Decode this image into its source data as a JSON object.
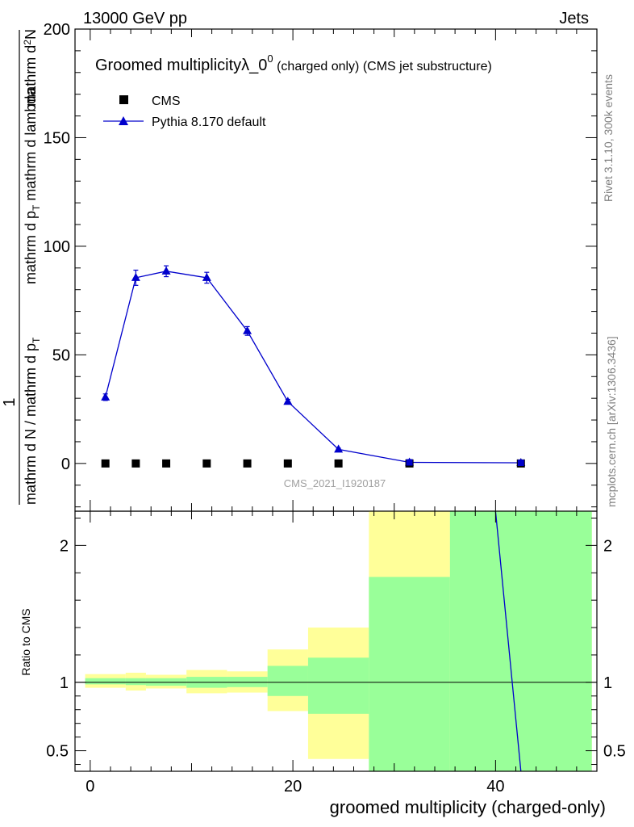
{
  "header": {
    "left": "13000 GeV pp",
    "right": "Jets"
  },
  "title": {
    "main": "Groomed multiplicityλ_0",
    "main_sup": "0",
    "sub": " (charged only) (CMS jet substructure)"
  },
  "side_labels": {
    "rivet": "Rivet 3.1.10,  300k events",
    "mcplots": "mcplots.cern.ch [arXiv:1306.3436]"
  },
  "watermark": "CMS_2021_I1920187",
  "colors": {
    "pythia": "#0000cc",
    "cms": "#000000",
    "band_inner": "#99ff99",
    "band_outer": "#ffff99"
  },
  "chart_data": [
    {
      "type": "scatter",
      "panel": "main",
      "ylabel_parts": {
        "one": "1",
        "den": "mathrm d N / mathrm d p",
        "den_sub": "T",
        "num": "mathrm d",
        "num_sup": "2",
        "num_tail": "N",
        "rhs": "mathrm d p",
        "rhs_sub": "T",
        "rhs_tail": " mathrm d lambda"
      },
      "ylim": [
        -22,
        200
      ],
      "xlim": [
        -1.5,
        50
      ],
      "yticks": [
        0,
        50,
        100,
        150,
        200
      ],
      "ytick_labels": [
        "0",
        "50",
        "100",
        "150",
        "200"
      ],
      "legend": [
        {
          "name": "CMS",
          "marker": "square"
        },
        {
          "name": "Pythia 8.170 default",
          "marker": "triangle"
        }
      ],
      "series": [
        {
          "name": "CMS",
          "x": [
            1.5,
            4.5,
            7.5,
            11.5,
            15.5,
            19.5,
            24.5,
            31.5,
            42.5
          ],
          "y": [
            0,
            0,
            0,
            0,
            0,
            0,
            0,
            0,
            0
          ]
        },
        {
          "name": "Pythia 8.170 default",
          "x": [
            1.5,
            4.5,
            7.5,
            11.5,
            15.5,
            19.5,
            24.5,
            31.5,
            42.5
          ],
          "y": [
            30.5,
            85.5,
            88.5,
            85.5,
            61.0,
            28.5,
            6.5,
            0.5,
            0.3
          ],
          "yerr": [
            1.5,
            3.5,
            2.5,
            2.5,
            2.0,
            1.0,
            0.5,
            0.2,
            0.1
          ]
        }
      ]
    },
    {
      "type": "area",
      "panel": "ratio",
      "ylabel": "Ratio to CMS",
      "xlabel": "groomed multiplicity (charged-only)",
      "ylim": [
        0.35,
        2.25
      ],
      "xlim": [
        -1.5,
        50
      ],
      "yticks": [
        0.5,
        1,
        2
      ],
      "ytick_labels": [
        "0.5",
        "1",
        "2"
      ],
      "xticks": [
        0,
        20,
        40
      ],
      "xtick_labels": [
        "0",
        "20",
        "40"
      ],
      "bins": [
        {
          "lo": -0.5,
          "hi": 3.5,
          "inner": [
            0.985,
            1.03
          ],
          "outer": [
            0.96,
            1.06
          ]
        },
        {
          "lo": 3.5,
          "hi": 5.5,
          "inner": [
            0.98,
            1.03
          ],
          "outer": [
            0.94,
            1.07
          ]
        },
        {
          "lo": 5.5,
          "hi": 9.5,
          "inner": [
            0.975,
            1.03
          ],
          "outer": [
            0.955,
            1.055
          ]
        },
        {
          "lo": 9.5,
          "hi": 13.5,
          "inner": [
            0.96,
            1.04
          ],
          "outer": [
            0.92,
            1.09
          ]
        },
        {
          "lo": 13.5,
          "hi": 17.5,
          "inner": [
            0.965,
            1.04
          ],
          "outer": [
            0.925,
            1.08
          ]
        },
        {
          "lo": 17.5,
          "hi": 21.5,
          "inner": [
            0.9,
            1.12
          ],
          "outer": [
            0.79,
            1.24
          ]
        },
        {
          "lo": 21.5,
          "hi": 27.5,
          "inner": [
            0.77,
            1.18
          ],
          "outer": [
            0.44,
            1.4
          ]
        },
        {
          "lo": 27.5,
          "hi": 35.5,
          "inner": [
            0.35,
            1.77
          ],
          "outer": [
            0.35,
            2.25
          ]
        },
        {
          "lo": 35.5,
          "hi": 49.5,
          "inner": [
            0.35,
            2.25
          ],
          "outer": [
            0.35,
            2.25
          ]
        }
      ],
      "series": [
        {
          "name": "Pythia 8.170 default",
          "x": [
            40.0,
            42.5
          ],
          "y": [
            2.25,
            0.35
          ]
        }
      ]
    }
  ]
}
